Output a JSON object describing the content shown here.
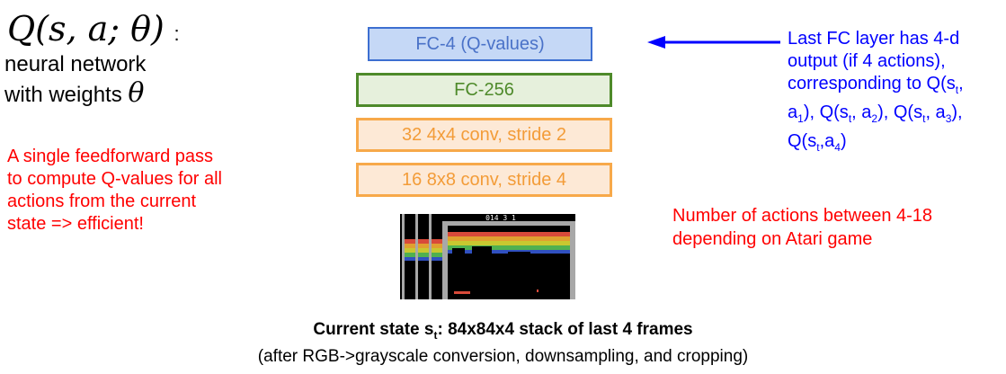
{
  "q_function": {
    "expr": "Q(s, a; θ)",
    "colon": ":"
  },
  "network_desc": {
    "line1": "neural network",
    "line2": "with weights",
    "theta": "θ"
  },
  "feedforward_note": {
    "line1": "A single feedforward pass",
    "line2": "to compute Q-values for all",
    "line3": "actions from the current",
    "line4": "state => efficient!"
  },
  "layers": {
    "fc4": "FC-4 (Q-values)",
    "fc256": "FC-256",
    "conv2": "32 4x4 conv, stride 2",
    "conv1": "16 8x8 conv, stride 4"
  },
  "fc_note": {
    "line1": "Last FC layer has 4-d",
    "line2": "output (if 4 actions),",
    "line3_pre": "corresponding to Q(s",
    "sub_t": "t",
    "line3_post": ",",
    "a1_pre": "a",
    "sub_1": "1",
    "a1_post": "), Q(s",
    "sub_t2": "t",
    "a2_pre": ", a",
    "sub_2": "2",
    "a2_post": "), Q(s",
    "sub_t3": "t",
    "a3_pre": ", a",
    "sub_3": "3",
    "a3_post": "),",
    "last_pre": "Q(s",
    "sub_t4": "t",
    "last_mid": ",a",
    "sub_4": "4",
    "last_post": ")"
  },
  "atari_note": {
    "line1": "Number of actions between 4-18",
    "line2": "depending on Atari game"
  },
  "caption": {
    "bold_pre": "Current state s",
    "bold_sub": "t",
    "bold_post": ": 84x84x4 stack of last 4 frames",
    "line2": "(after RGB->grayscale conversion, downsampling, and cropping)"
  },
  "frames": {
    "score_text": "014 3 1"
  },
  "colors": {
    "blue_note": "#0000ff",
    "red_note": "#ff0000",
    "fc4_border": "#3d6fd1",
    "fc256_border": "#4e8a2a",
    "conv_border": "#f7a94a"
  }
}
